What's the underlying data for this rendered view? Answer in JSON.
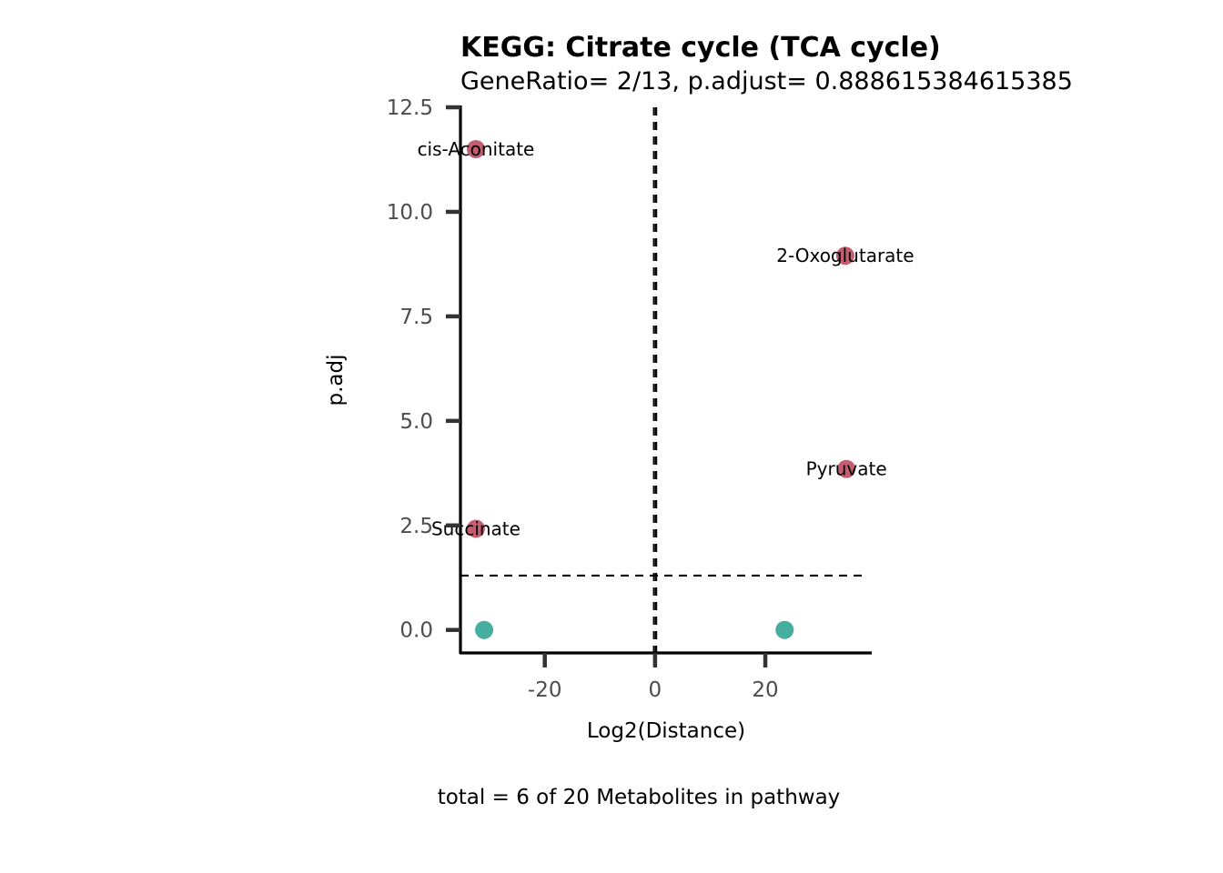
{
  "chart_data": {
    "type": "scatter",
    "title": "KEGG: Citrate cycle (TCA cycle)",
    "subtitle": "GeneRatio= 2/13, p.adjust= 0.888615384615385",
    "xlabel": "Log2(Distance)",
    "ylabel": "p.adj",
    "caption": "total = 6 of 20 Metabolites in pathway",
    "xlim": [
      -35.3,
      39.3
    ],
    "ylim": [
      -0.55,
      12.5
    ],
    "x_ticks": [
      -20,
      0,
      20
    ],
    "x_tick_labels": [
      "-20",
      "0",
      "20"
    ],
    "y_ticks": [
      0,
      2.5,
      5,
      7.5,
      10,
      12.5
    ],
    "y_tick_labels": [
      "0.0",
      "2.5",
      "5.0",
      "7.5",
      "10.0",
      "12.5"
    ],
    "hline": 1.3,
    "vlines": [
      -0.2,
      0.2
    ],
    "colors": {
      "significant": "#C35E71",
      "not_significant": "#46AE9F"
    },
    "points": [
      {
        "label": "cis-Aconitate",
        "x": -32.5,
        "y": 11.5,
        "significant": true
      },
      {
        "label": "2-Oxoglutarate",
        "x": 34.5,
        "y": 8.95,
        "significant": true
      },
      {
        "label": "Pyruvate",
        "x": 34.7,
        "y": 3.85,
        "significant": true
      },
      {
        "label": "Succinate",
        "x": -32.5,
        "y": 2.42,
        "significant": true
      },
      {
        "label": "",
        "x": -31.0,
        "y": 0.0,
        "significant": false
      },
      {
        "label": "",
        "x": 23.5,
        "y": 0.0,
        "significant": false
      }
    ]
  }
}
